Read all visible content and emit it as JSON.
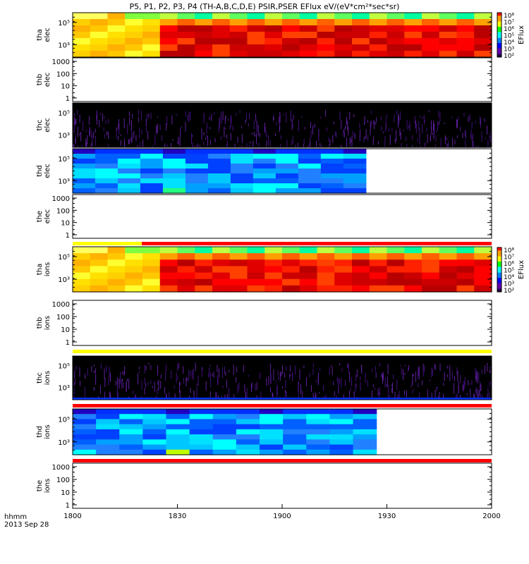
{
  "title": "P5, P1, P2, P3, P4 (TH-A,B,C,D,E) PSIR,PSER EFlux eV/(eV*cm²*sec*sr)",
  "colorbar": {
    "label": "EFlux",
    "ticks": [
      "10⁸",
      "10⁷",
      "10⁶",
      "10⁵",
      "10⁴",
      "10³",
      "10²"
    ]
  },
  "xaxis": {
    "ticks": [
      "1800",
      "1830",
      "1900",
      "1930",
      "2000"
    ],
    "units_label": "hhmm",
    "date_label": "2013 Sep 28"
  },
  "chart_data": {
    "type": "heatmap",
    "x_range": [
      "18:00",
      "20:00"
    ],
    "y_scale": "log",
    "z_label": "EFlux",
    "z_range": [
      100,
      100000000
    ],
    "panels": [
      {
        "id": "tha-elec",
        "probe": "tha",
        "species": "elec",
        "ylabel": "tha elec",
        "yticks": [
          "10⁵",
          "10³"
        ],
        "data_coverage": [
          0,
          1
        ],
        "fill": "hot",
        "description_values": {
          "18:00-18:21": "yellow/green",
          "18:21-20:00": "red/dark-red"
        }
      },
      {
        "id": "thb-elec",
        "probe": "thb",
        "species": "elec",
        "ylabel": "thb elec",
        "yticks": [
          "1000",
          "100",
          "10",
          "1"
        ],
        "data_coverage": [
          0,
          0
        ],
        "fill": "empty"
      },
      {
        "id": "thc-elec",
        "probe": "thc",
        "species": "elec",
        "ylabel": "thc elec",
        "yticks": [
          "10⁵",
          "10³"
        ],
        "data_coverage": [
          0,
          1
        ],
        "fill": "noise"
      },
      {
        "id": "thd-elec",
        "probe": "thd",
        "species": "elec",
        "ylabel": "thd elec",
        "yticks": [
          "10⁵",
          "10³"
        ],
        "data_coverage": [
          0,
          0.7
        ],
        "fill": "cool"
      },
      {
        "id": "the-elec",
        "probe": "the",
        "species": "elec",
        "ylabel": "the elec",
        "yticks": [
          "1000",
          "100",
          "10",
          "1"
        ],
        "data_coverage": [
          0,
          0
        ],
        "fill": "empty"
      },
      {
        "id": "tha-ions",
        "probe": "tha",
        "species": "ions",
        "ylabel": "tha ions",
        "yticks": [
          "10⁵",
          "10³"
        ],
        "data_coverage": [
          0,
          1
        ],
        "fill": "hot"
      },
      {
        "id": "thb-ions",
        "probe": "thb",
        "species": "ions",
        "ylabel": "thb ions",
        "yticks": [
          "1000",
          "100",
          "10",
          "1"
        ],
        "data_coverage": [
          0,
          0
        ],
        "fill": "empty"
      },
      {
        "id": "thc-ions",
        "probe": "thc",
        "species": "ions",
        "ylabel": "thc ions",
        "yticks": [
          "10⁵",
          "10³"
        ],
        "data_coverage": [
          0,
          1
        ],
        "fill": "noise"
      },
      {
        "id": "thd-ions",
        "probe": "thd",
        "species": "ions",
        "ylabel": "thd ions",
        "yticks": [
          "10⁵",
          "10³"
        ],
        "data_coverage": [
          0,
          0.725
        ],
        "fill": "cool"
      },
      {
        "id": "the-ions",
        "probe": "the",
        "species": "ions",
        "ylabel": "the ions",
        "yticks": [
          "1000",
          "100",
          "10",
          "1"
        ],
        "data_coverage": [
          0,
          0
        ],
        "fill": "empty"
      }
    ],
    "status_bars": [
      {
        "before": "tha-ions",
        "segments": [
          {
            "from": 0,
            "to": 0.165,
            "color": "#ffff00"
          },
          {
            "from": 0.165,
            "to": 1,
            "color": "#ff0000"
          }
        ]
      },
      {
        "before": "thc-ions",
        "segments": [
          {
            "from": 0,
            "to": 1,
            "color": "#ffff00"
          }
        ]
      },
      {
        "before": "thd-ions",
        "segments": [
          {
            "from": 0,
            "to": 1,
            "color": "#ff0000"
          }
        ]
      },
      {
        "before": "the-ions",
        "segments": [
          {
            "from": 0,
            "to": 1,
            "color": "#ff0000"
          }
        ]
      }
    ]
  }
}
